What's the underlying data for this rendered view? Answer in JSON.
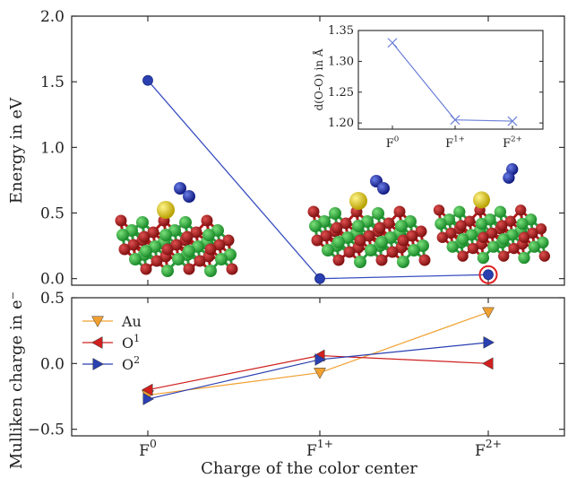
{
  "chart_data": [
    {
      "type": "line",
      "name": "energy-panel",
      "categories": [
        "F^0",
        "F^{1+}",
        "F^{2+}"
      ],
      "values": [
        1.51,
        0.0,
        0.03
      ],
      "ylabel": "Energy in eV",
      "ylim": [
        -0.05,
        2.0
      ],
      "yticks": [
        "0.0",
        "0.5",
        "1.0",
        "1.5",
        "2.0"
      ],
      "color": "#3a4fc0",
      "highlighted_category": "F^{2+}",
      "highlight_color": "#e02020"
    },
    {
      "type": "line",
      "name": "inset-oo-distance",
      "categories": [
        "F^0",
        "F^{1+}",
        "F^{2+}"
      ],
      "values": [
        1.33,
        1.205,
        1.203
      ],
      "ylabel": "d(O-O) in Å",
      "ylim": [
        1.19,
        1.35
      ],
      "yticks": [
        "1.20",
        "1.25",
        "1.30",
        "1.35"
      ],
      "marker": "x",
      "color": "#6a7fd8"
    },
    {
      "type": "line",
      "name": "mulliken-panel",
      "categories": [
        "F^0",
        "F^{1+}",
        "F^{2+}"
      ],
      "xlabel": "Charge of the color center",
      "ylabel": "Mulliken charge in e⁻",
      "ylim": [
        -0.55,
        0.5
      ],
      "yticks": [
        "−0.5",
        "0.0",
        "0.5"
      ],
      "legend_position": "top-left",
      "series": [
        {
          "name": "Au",
          "values": [
            -0.24,
            -0.07,
            0.39
          ],
          "color": "#f0a030",
          "marker": "triangle-down"
        },
        {
          "name": "O1",
          "values": [
            -0.2,
            0.06,
            0.0
          ],
          "color": "#d02020",
          "marker": "triangle-left"
        },
        {
          "name": "O2",
          "values": [
            -0.27,
            0.03,
            0.16
          ],
          "color": "#2a3fb0",
          "marker": "triangle-right"
        }
      ]
    }
  ]
}
